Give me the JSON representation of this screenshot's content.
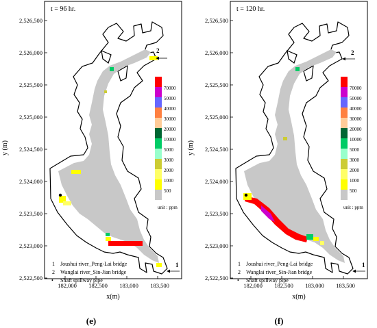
{
  "panels": [
    {
      "time_label": "t = 96 hr.",
      "caption": "(e)",
      "y_axis_label": "y (m)",
      "x_axis_label": "x(m)",
      "y_ticks": [
        "2,526,500",
        "2,526,000",
        "2,525,500",
        "2,525,000",
        "2,524,500",
        "2,524,000",
        "2,523,500",
        "2,523,000",
        "2,522,500"
      ],
      "x_ticks": [
        "182,000",
        "182,500",
        "183,000",
        "183,500"
      ],
      "markers": [
        {
          "label": "2"
        },
        {
          "label": "1"
        }
      ],
      "legend_notes": [
        {
          "symbol": "1",
          "text": "Joushui river_Peng-Lai bridge"
        },
        {
          "symbol": "2",
          "text": "Wanglai river_Sin-Jian bridge"
        },
        {
          "symbol": "•",
          "text": "Shaft spillway pipe"
        }
      ]
    },
    {
      "time_label": "t = 120 hr.",
      "caption": "(f)",
      "y_axis_label": "y (m)",
      "x_axis_label": "x(m)",
      "y_ticks": [
        "2,526,500",
        "2,526,000",
        "2,525,500",
        "2,525,000",
        "2,524,500",
        "2,524,000",
        "2,523,500",
        "2,523,000",
        "2,522,500"
      ],
      "x_ticks": [
        "182,000",
        "182,500",
        "183,000",
        "183,500"
      ],
      "markers": [
        {
          "label": "2"
        },
        {
          "label": "1"
        }
      ],
      "legend_notes": [
        {
          "symbol": "1",
          "text": "Joushui river_Peng-Lai bridge"
        },
        {
          "symbol": "2",
          "text": "Wanglai river_Sin-Jian bridge"
        },
        {
          "symbol": "•",
          "text": "Shaft spillway pipe"
        }
      ]
    }
  ],
  "color_scale": {
    "unit_label": "unit : ppm",
    "levels": [
      {
        "label": "70000",
        "color": "#ff0000"
      },
      {
        "label": "50000",
        "color": "#cc00cc"
      },
      {
        "label": "40000",
        "color": "#6666ff"
      },
      {
        "label": "30000",
        "color": "#ff8040"
      },
      {
        "label": "20000",
        "color": "#ffcc99"
      },
      {
        "label": "10000",
        "color": "#006633"
      },
      {
        "label": "5000",
        "color": "#00cc66"
      },
      {
        "label": "3000",
        "color": "#99ffcc"
      },
      {
        "label": "2000",
        "color": "#cccc33"
      },
      {
        "label": "1000",
        "color": "#ffff66"
      },
      {
        "label": "500",
        "color": "#ffff00"
      },
      {
        "label": "",
        "color": "#c8c8c8"
      }
    ]
  }
}
